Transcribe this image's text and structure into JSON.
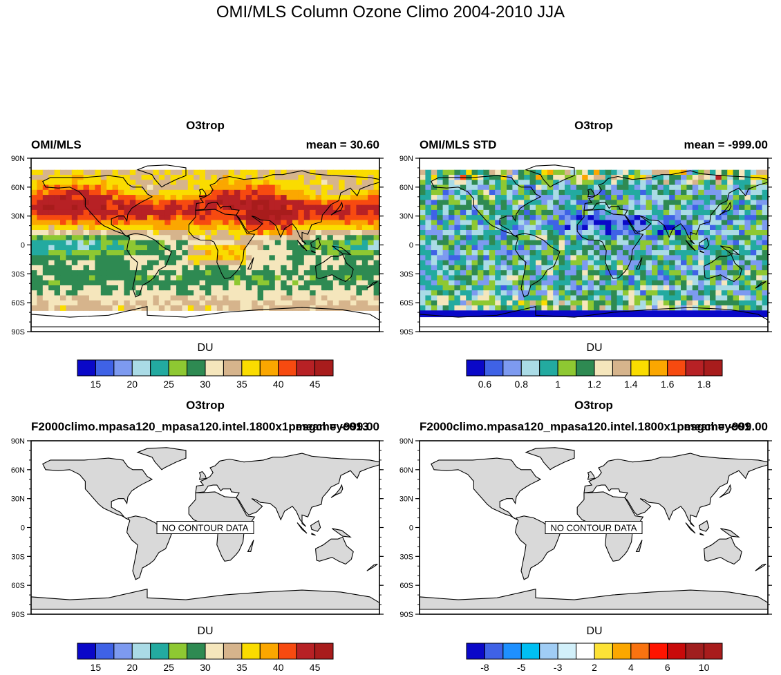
{
  "title": "OMI/MLS Column Ozone Climo 2004-2010 JJA",
  "lat_labels": [
    "90N",
    "60N",
    "30N",
    "0",
    "30S",
    "60S",
    "90S"
  ],
  "panels": [
    {
      "center_title": "O3trop",
      "left_string": "OMI/MLS",
      "right_string": "mean =  30.60",
      "has_data": true,
      "colorbar": {
        "units": "DU",
        "colors": [
          "#0a08c8",
          "#3f62e6",
          "#7d9af0",
          "#aadbe6",
          "#23aaa0",
          "#8ec832",
          "#2e8a52",
          "#f5e6bc",
          "#d6b48c",
          "#fadc00",
          "#fba700",
          "#f74a10",
          "#b72125",
          "#a81c1c"
        ],
        "labels": [
          "15",
          "20",
          "25",
          "30",
          "35",
          "40",
          "45"
        ],
        "label_at_boundaries": [
          1,
          3,
          5,
          7,
          9,
          11,
          13
        ]
      }
    },
    {
      "center_title": "O3trop",
      "left_string": "OMI/MLS STD",
      "right_string": "mean = -999.00",
      "has_data": true,
      "colorbar": {
        "units": "DU",
        "colors": [
          "#0a08c8",
          "#3f62e6",
          "#7d9af0",
          "#aadbe6",
          "#23aaa0",
          "#8ec832",
          "#2e8a52",
          "#f5e6bc",
          "#d6b48c",
          "#fadc00",
          "#fba700",
          "#f74a10",
          "#b72125",
          "#a81c1c"
        ],
        "labels": [
          "0.6",
          "0.8",
          "1",
          "1.2",
          "1.4",
          "1.6",
          "1.8"
        ],
        "label_at_boundaries": [
          1,
          3,
          5,
          7,
          9,
          11,
          13
        ]
      }
    },
    {
      "center_title": "O3trop",
      "left_string": "F2000climo.mpasa120_mpasa120.intel.1800x1pesgcheyc013",
      "right_string": "mean = -999.00",
      "has_data": false,
      "no_data_text": "NO CONTOUR DATA",
      "colorbar": {
        "units": "DU",
        "colors": [
          "#0a08c8",
          "#3f62e6",
          "#7d9af0",
          "#aadbe6",
          "#23aaa0",
          "#8ec832",
          "#2e8a52",
          "#f5e6bc",
          "#d6b48c",
          "#fadc00",
          "#fba700",
          "#f74a10",
          "#b72125",
          "#a81c1c"
        ],
        "labels": [
          "15",
          "20",
          "25",
          "30",
          "35",
          "40",
          "45"
        ],
        "label_at_boundaries": [
          1,
          3,
          5,
          7,
          9,
          11,
          13
        ]
      }
    },
    {
      "center_title": "O3trop",
      "left_string": "F2000climo.mpasa120_mpasa120.intel.1800x1pesgcheyc01",
      "right_string": "mean = -999.00",
      "has_data": false,
      "no_data_text": "NO CONTOUR DATA",
      "colorbar": {
        "units": "DU",
        "colors": [
          "#0a08c8",
          "#3f62e6",
          "#1e90ff",
          "#00bff3",
          "#a0cdf5",
          "#d2f0fa",
          "#ffffff",
          "#fde236",
          "#fba700",
          "#f97310",
          "#ff1400",
          "#c80a0a",
          "#a01e1e",
          "#a81c1c"
        ],
        "labels": [
          "-8",
          "-5",
          "-3",
          "2",
          "4",
          "6",
          "10"
        ],
        "label_at_boundaries": [
          1,
          3,
          5,
          7,
          9,
          11,
          13
        ]
      }
    }
  ]
}
